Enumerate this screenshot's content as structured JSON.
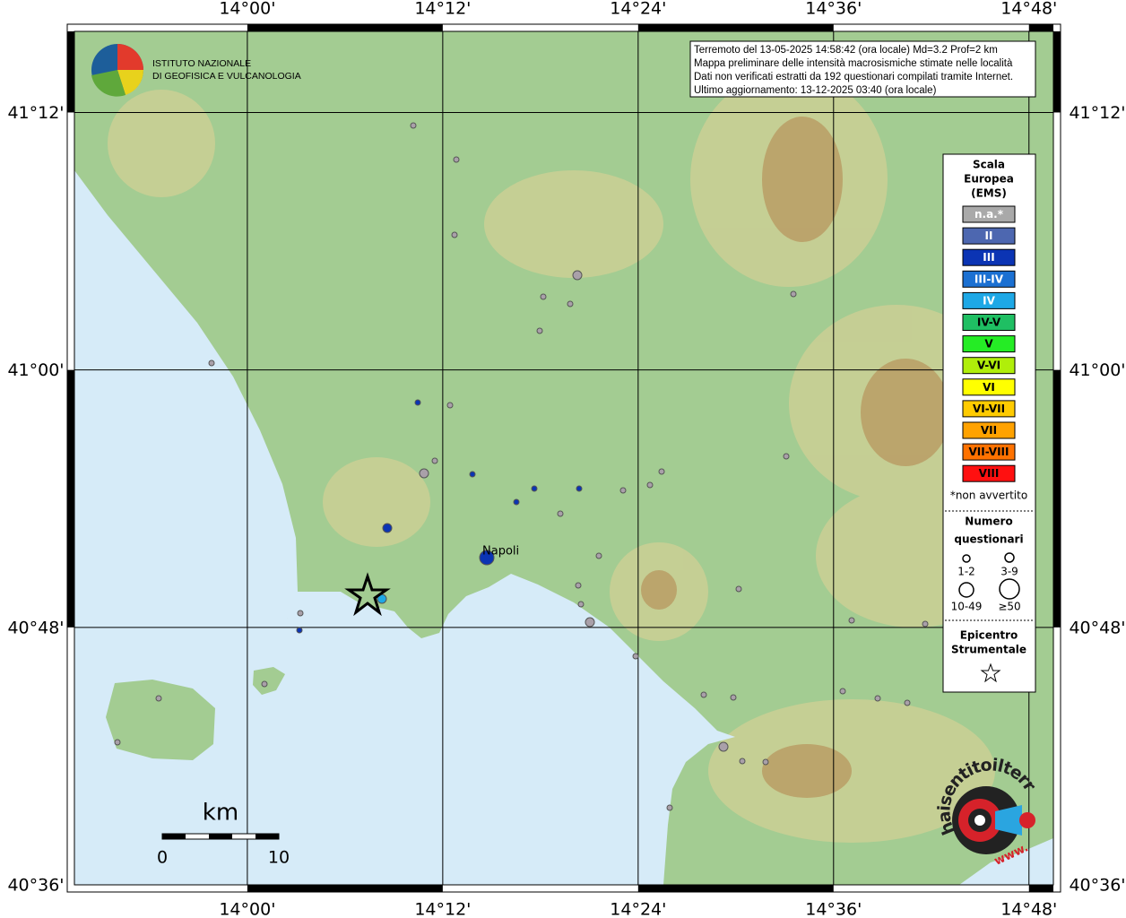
{
  "map": {
    "xlim": [
      13.823,
      14.825
    ],
    "ylim": [
      40.6,
      41.263
    ],
    "xticks": [
      {
        "value": 14.0,
        "label": "14°00'"
      },
      {
        "value": 14.2,
        "label": "14°12'"
      },
      {
        "value": 14.4,
        "label": "14°24'"
      },
      {
        "value": 14.6,
        "label": "14°36'"
      },
      {
        "value": 14.8,
        "label": "14°48'"
      }
    ],
    "yticks": [
      {
        "value": 41.2,
        "label": "41°12'"
      },
      {
        "value": 41.0,
        "label": "41°00'"
      },
      {
        "value": 40.8,
        "label": "40°48'"
      },
      {
        "value": 40.6,
        "label": "40°36'"
      }
    ],
    "city": "Napoli"
  },
  "info": [
    "Terremoto del 13-05-2025 14:58:42 (ora locale) Md=3.2 Prof=2 km",
    "Mappa preliminare delle intensità macrosismiche stimate nelle località",
    "Dati non verificati estratti da 192 questionari compilati tramite Internet.",
    "Ultimo aggiornamento: 13-12-2025 03:40 (ora locale)"
  ],
  "logo": {
    "line1": "ISTITUTO NAZIONALE",
    "line2": "DI GEOFISICA E VULCANOLOGIA",
    "site": "haisentitoilterremoto.it",
    "www": "www."
  },
  "legend": {
    "title": [
      "Scala",
      "Europea",
      "(EMS)"
    ],
    "items": [
      {
        "label": "n.a.*",
        "color": "#a9a9a9"
      },
      {
        "label": "II",
        "color": "#4d67b0"
      },
      {
        "label": "III",
        "color": "#0b34b4"
      },
      {
        "label": "III-IV",
        "color": "#1b70d2"
      },
      {
        "label": "IV",
        "color": "#1ea8e6"
      },
      {
        "label": "IV-V",
        "color": "#1fbf63"
      },
      {
        "label": "V",
        "color": "#25ec25"
      },
      {
        "label": "V-VI",
        "color": "#b0ee0a"
      },
      {
        "label": "VI",
        "color": "#ffff00"
      },
      {
        "label": "VI-VII",
        "color": "#ffcb00"
      },
      {
        "label": "VII",
        "color": "#ffa200"
      },
      {
        "label": "VII-VIII",
        "color": "#ff7200"
      },
      {
        "label": "VIII",
        "color": "#ff1010"
      }
    ],
    "note": "*non avvertito",
    "count_title": [
      "Numero",
      "questionari"
    ],
    "sizes": [
      "1-2",
      "3-9",
      "10-49",
      "≥50"
    ],
    "epi": [
      "Epicentro",
      "Strumentale"
    ]
  },
  "scale": {
    "unit": "km",
    "start": "0",
    "end": "10"
  }
}
